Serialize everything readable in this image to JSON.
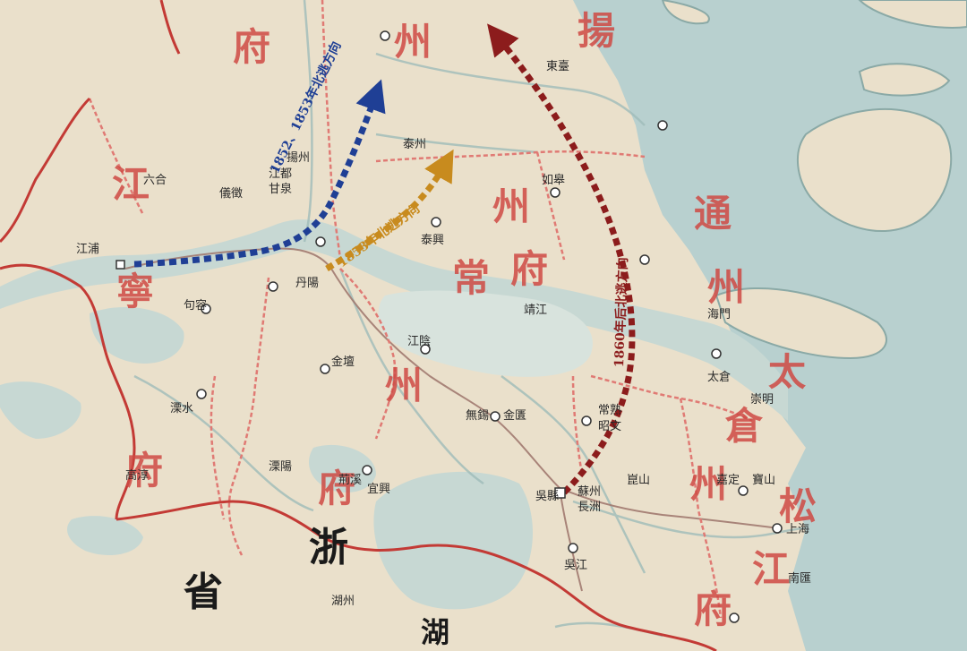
{
  "map": {
    "background": "#eae0cb",
    "colors": {
      "sea": "#b8d0cf",
      "lake": "#c7d8d3",
      "province_border": "#c33a35",
      "prefecture_border": "#e07a74",
      "road": "#a17a70",
      "route_1852": "#1f3f95",
      "route_1853": "#c88b1e",
      "route_1860": "#8c1c1c"
    },
    "region_labels": [
      "揚",
      "州",
      "府",
      "江",
      "寧",
      "府",
      "常",
      "州",
      "府",
      "州",
      "府",
      "通",
      "州",
      "太",
      "倉",
      "州",
      "松",
      "江",
      "府",
      "浙",
      "省",
      "湖"
    ],
    "place_labels": [
      "江都",
      "泰興",
      "如皋",
      "靖江",
      "江陰",
      "無錫",
      "金匱",
      "常熟",
      "昭文",
      "蘇州",
      "吳縣",
      "長洲",
      "崑山",
      "太倉",
      "嘉定",
      "寶山",
      "上海",
      "丹陽",
      "金壇",
      "溧陽",
      "宜興",
      "荊溪",
      "句容",
      "溧水",
      "高淳",
      "江浦",
      "六合",
      "儀徵",
      "甘泉",
      "揚州",
      "泰州",
      "東臺",
      "海門",
      "崇明",
      "南匯",
      "吳江",
      "湖州"
    ],
    "routes": [
      {
        "label": "1852、1853年北逃方向",
        "color_key": "route_1852"
      },
      {
        "label": "1853年北逃方向",
        "color_key": "route_1853"
      },
      {
        "label": "1860年后北逃方向",
        "color_key": "route_1860"
      }
    ]
  }
}
